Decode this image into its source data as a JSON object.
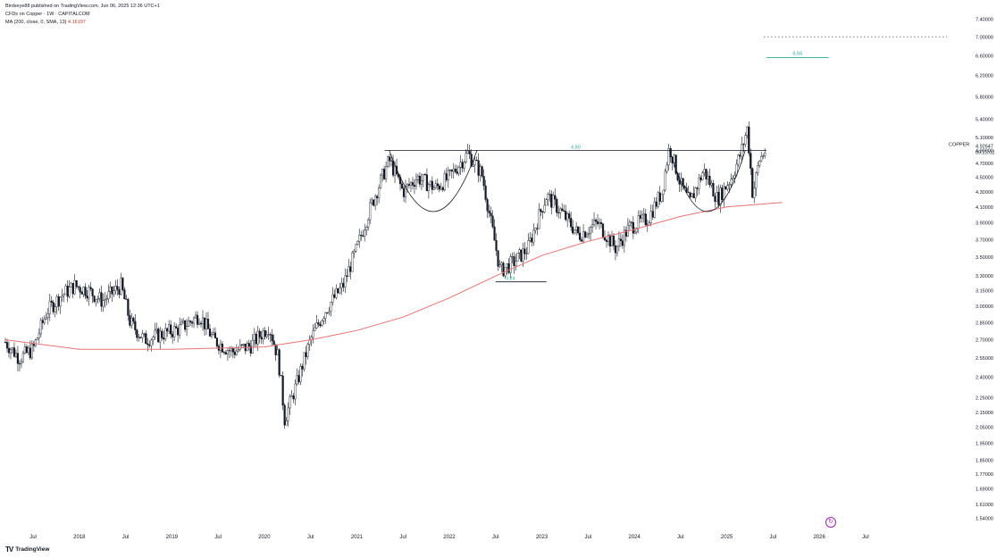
{
  "header": {
    "published": "Birdseye88 published on TradingView.com, Jun 06, 2025 12:36 UTC+1",
    "symbol": "CFDs on Copper · 1W · CAPITALCOM",
    "ma_label": "MA (200, close, 0, SMA, 13)",
    "ma_value": "4.16197"
  },
  "footer": {
    "brand": "TradingView",
    "logo": "TV"
  },
  "price_tag": {
    "symbol": "COPPER",
    "price": "4.92647",
    "countdown": "09:23:02"
  },
  "annotations": {
    "resistance_label": "4.90",
    "support_label": "3.24",
    "target_label": "6.56"
  },
  "colors": {
    "ma_line": "#e57373",
    "candles": "#131722",
    "annotation_text": "#22ab94",
    "target_line": "#22ab94",
    "dotted_line": "#787b86",
    "shape": "#131722"
  },
  "icons": {
    "replay": "replay-icon"
  },
  "chart_data": {
    "type": "candlestick",
    "y_scale": "log",
    "ylim": [
      1.5,
      7.6
    ],
    "y_ticks": [
      "7.40000",
      "7.00000",
      "6.60000",
      "6.20000",
      "5.80000",
      "5.40000",
      "5.10000",
      "4.90000",
      "4.70000",
      "4.50000",
      "4.30000",
      "4.10000",
      "3.90000",
      "3.70000",
      "3.50000",
      "3.30000",
      "3.15000",
      "3.00000",
      "2.85000",
      "2.70000",
      "2.55000",
      "2.40000",
      "2.25000",
      "2.15000",
      "2.05000",
      "1.95000",
      "1.85000",
      "1.77000",
      "1.69000",
      "1.61000",
      "1.54000"
    ],
    "x_ticks": [
      {
        "label": "Jul",
        "t": 2017.5
      },
      {
        "label": "2018",
        "t": 2018.0
      },
      {
        "label": "Jul",
        "t": 2018.5
      },
      {
        "label": "2019",
        "t": 2019.0
      },
      {
        "label": "Jul",
        "t": 2019.5
      },
      {
        "label": "2020",
        "t": 2020.0
      },
      {
        "label": "Jul",
        "t": 2020.5
      },
      {
        "label": "2021",
        "t": 2021.0
      },
      {
        "label": "Jul",
        "t": 2021.5
      },
      {
        "label": "2022",
        "t": 2022.0
      },
      {
        "label": "Jul",
        "t": 2022.5
      },
      {
        "label": "2023",
        "t": 2023.0
      },
      {
        "label": "Jul",
        "t": 2023.5
      },
      {
        "label": "2024",
        "t": 2024.0
      },
      {
        "label": "Jul",
        "t": 2024.5
      },
      {
        "label": "2025",
        "t": 2025.0
      },
      {
        "label": "Jul",
        "t": 2025.5
      },
      {
        "label": "2026",
        "t": 2026.0
      },
      {
        "label": "Jul",
        "t": 2026.5
      }
    ],
    "price_path": [
      {
        "t": 2017.2,
        "p": 2.68
      },
      {
        "t": 2017.35,
        "p": 2.55
      },
      {
        "t": 2017.5,
        "p": 2.62
      },
      {
        "t": 2017.65,
        "p": 2.95
      },
      {
        "t": 2017.8,
        "p": 3.1
      },
      {
        "t": 2017.95,
        "p": 3.2
      },
      {
        "t": 2018.1,
        "p": 3.15
      },
      {
        "t": 2018.25,
        "p": 3.05
      },
      {
        "t": 2018.45,
        "p": 3.2
      },
      {
        "t": 2018.55,
        "p": 2.85
      },
      {
        "t": 2018.7,
        "p": 2.7
      },
      {
        "t": 2018.9,
        "p": 2.75
      },
      {
        "t": 2019.1,
        "p": 2.8
      },
      {
        "t": 2019.3,
        "p": 2.92
      },
      {
        "t": 2019.45,
        "p": 2.7
      },
      {
        "t": 2019.65,
        "p": 2.6
      },
      {
        "t": 2019.85,
        "p": 2.65
      },
      {
        "t": 2020.05,
        "p": 2.82
      },
      {
        "t": 2020.15,
        "p": 2.55
      },
      {
        "t": 2020.22,
        "p": 2.1
      },
      {
        "t": 2020.35,
        "p": 2.35
      },
      {
        "t": 2020.5,
        "p": 2.7
      },
      {
        "t": 2020.65,
        "p": 2.95
      },
      {
        "t": 2020.85,
        "p": 3.2
      },
      {
        "t": 2021.0,
        "p": 3.6
      },
      {
        "t": 2021.15,
        "p": 4.1
      },
      {
        "t": 2021.35,
        "p": 4.75
      },
      {
        "t": 2021.5,
        "p": 4.3
      },
      {
        "t": 2021.65,
        "p": 4.5
      },
      {
        "t": 2021.85,
        "p": 4.35
      },
      {
        "t": 2022.0,
        "p": 4.5
      },
      {
        "t": 2022.2,
        "p": 4.85
      },
      {
        "t": 2022.35,
        "p": 4.55
      },
      {
        "t": 2022.45,
        "p": 3.9
      },
      {
        "t": 2022.55,
        "p": 3.35
      },
      {
        "t": 2022.7,
        "p": 3.45
      },
      {
        "t": 2022.85,
        "p": 3.6
      },
      {
        "t": 2023.05,
        "p": 4.25
      },
      {
        "t": 2023.2,
        "p": 4.05
      },
      {
        "t": 2023.4,
        "p": 3.75
      },
      {
        "t": 2023.6,
        "p": 3.9
      },
      {
        "t": 2023.8,
        "p": 3.6
      },
      {
        "t": 2023.95,
        "p": 3.85
      },
      {
        "t": 2024.15,
        "p": 3.95
      },
      {
        "t": 2024.3,
        "p": 4.3
      },
      {
        "t": 2024.38,
        "p": 4.95
      },
      {
        "t": 2024.5,
        "p": 4.4
      },
      {
        "t": 2024.6,
        "p": 4.15
      },
      {
        "t": 2024.75,
        "p": 4.6
      },
      {
        "t": 2024.9,
        "p": 4.2
      },
      {
        "t": 2025.05,
        "p": 4.5
      },
      {
        "t": 2025.15,
        "p": 4.85
      },
      {
        "t": 2025.22,
        "p": 5.25
      },
      {
        "t": 2025.28,
        "p": 4.25
      },
      {
        "t": 2025.35,
        "p": 4.75
      },
      {
        "t": 2025.43,
        "p": 4.93
      }
    ],
    "ma_path": [
      {
        "t": 2017.2,
        "p": 2.7
      },
      {
        "t": 2018.0,
        "p": 2.62
      },
      {
        "t": 2019.0,
        "p": 2.62
      },
      {
        "t": 2020.0,
        "p": 2.64
      },
      {
        "t": 2020.5,
        "p": 2.7
      },
      {
        "t": 2021.0,
        "p": 2.78
      },
      {
        "t": 2021.5,
        "p": 2.9
      },
      {
        "t": 2022.0,
        "p": 3.08
      },
      {
        "t": 2022.5,
        "p": 3.3
      },
      {
        "t": 2023.0,
        "p": 3.52
      },
      {
        "t": 2023.5,
        "p": 3.68
      },
      {
        "t": 2024.0,
        "p": 3.82
      },
      {
        "t": 2024.5,
        "p": 3.98
      },
      {
        "t": 2025.0,
        "p": 4.1
      },
      {
        "t": 2025.6,
        "p": 4.16
      }
    ],
    "resistance": {
      "p": 4.9,
      "t0": 2021.3,
      "t1": 2025.43
    },
    "support": {
      "p": 3.24,
      "t0": 2022.5,
      "t1": 2023.05
    },
    "target": {
      "p": 6.56,
      "t0": 2025.43,
      "t1": 2026.1
    },
    "dotted_level": {
      "p": 7.0,
      "t0": 2025.4,
      "t1": 2027.38
    },
    "cups": [
      {
        "t0": 2021.35,
        "t1": 2022.3,
        "p_top": 4.9,
        "p_bottom": 4.0
      },
      {
        "t0": 2024.38,
        "t1": 2025.2,
        "p_top": 4.9,
        "p_bottom": 4.0
      }
    ]
  }
}
